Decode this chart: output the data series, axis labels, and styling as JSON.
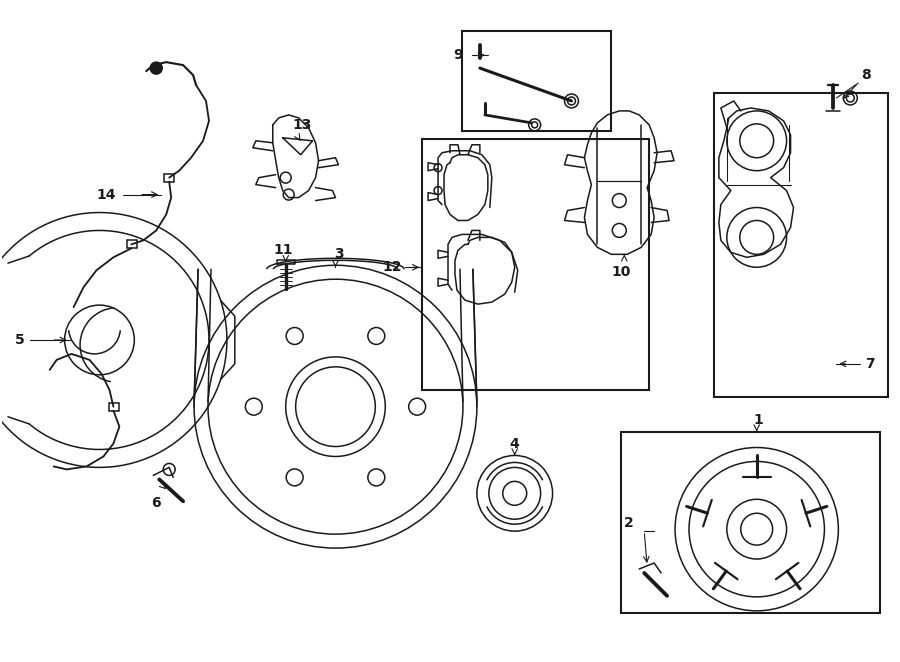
{
  "bg_color": "#ffffff",
  "line_color": "#1a1a1a",
  "lw": 1.1,
  "fig_w": 9.0,
  "fig_h": 6.62,
  "xlim": [
    0,
    9.0
  ],
  "ylim": [
    0,
    6.62
  ]
}
